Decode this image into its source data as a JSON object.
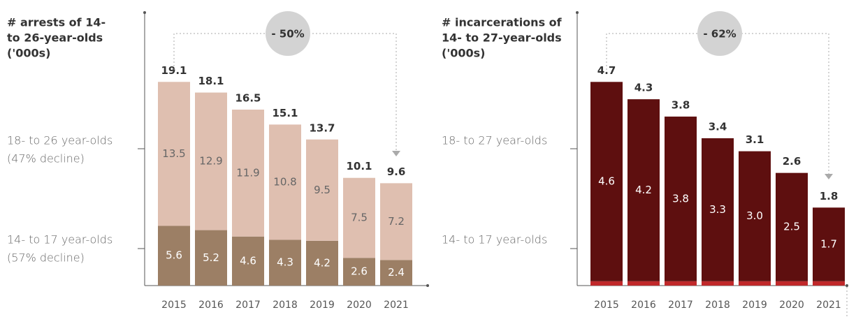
{
  "chart_data": [
    {
      "type": "bar",
      "stacked": true,
      "title_lines": [
        "# arrests of 14-",
        "to 26-year-olds",
        "('000s)"
      ],
      "categories": [
        "2015",
        "2016",
        "2017",
        "2018",
        "2019",
        "2020",
        "2021"
      ],
      "series": [
        {
          "name": "14- to 17 year-olds",
          "note": "(57% decline)",
          "color": "#9c7f65",
          "values": [
            5.6,
            5.2,
            4.6,
            4.3,
            4.2,
            2.6,
            2.4
          ]
        },
        {
          "name": "18- to 26 year-olds",
          "note": "(47% decline)",
          "color": "#dfbfb0",
          "values": [
            13.5,
            12.9,
            11.9,
            10.8,
            9.5,
            7.5,
            7.2
          ]
        }
      ],
      "totals": [
        19.1,
        18.1,
        16.5,
        15.1,
        13.7,
        10.1,
        9.6
      ],
      "annotation": "- 50%",
      "ylim": [
        0,
        25.6
      ]
    },
    {
      "type": "bar",
      "stacked": true,
      "title_lines": [
        "# incarcerations of",
        "14- to 27-year-olds",
        "('000s)"
      ],
      "categories": [
        "2015",
        "2016",
        "2017",
        "2018",
        "2019",
        "2020",
        "2021"
      ],
      "series": [
        {
          "name": "14- to 17 year-olds",
          "color": "#c0282a",
          "values": [
            0.1,
            0.1,
            0.1,
            0.1,
            0.1,
            0.1,
            0.1
          ]
        },
        {
          "name": "18- to 27 year-olds",
          "color": "#5e0f0f",
          "values": [
            4.6,
            4.2,
            3.8,
            3.3,
            3.0,
            2.5,
            1.7
          ],
          "value_labels": [
            "4.6",
            "4.2",
            "3.8",
            "3.3",
            "3.0",
            "2.5",
            "1.7"
          ]
        }
      ],
      "totals": [
        4.7,
        4.3,
        3.8,
        3.4,
        3.1,
        2.6,
        1.8
      ],
      "annotation": "- 62%",
      "ylim": [
        0,
        6.3
      ]
    }
  ]
}
